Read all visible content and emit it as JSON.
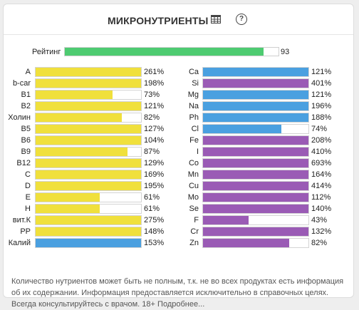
{
  "header": {
    "title": "МИКРОНУТРИЕНТЫ",
    "table_icon": "table-icon",
    "help_icon": "help-icon",
    "help_glyph": "?"
  },
  "rating": {
    "label": "Рейтинг",
    "value": 93,
    "value_text": "93",
    "color": "#4ecb71"
  },
  "colors": {
    "yellow": "#f0e03c",
    "blue": "#4aa0e0",
    "purple": "#9a5bb5"
  },
  "left": [
    {
      "name": "A",
      "pct": "261%",
      "value": 261,
      "color": "yellow"
    },
    {
      "name": "b-car",
      "pct": "198%",
      "value": 198,
      "color": "yellow"
    },
    {
      "name": "B1",
      "pct": "73%",
      "value": 73,
      "color": "yellow"
    },
    {
      "name": "B2",
      "pct": "121%",
      "value": 121,
      "color": "yellow"
    },
    {
      "name": "Холин",
      "pct": "82%",
      "value": 82,
      "color": "yellow"
    },
    {
      "name": "B5",
      "pct": "127%",
      "value": 127,
      "color": "yellow"
    },
    {
      "name": "B6",
      "pct": "104%",
      "value": 104,
      "color": "yellow"
    },
    {
      "name": "B9",
      "pct": "87%",
      "value": 87,
      "color": "yellow"
    },
    {
      "name": "B12",
      "pct": "129%",
      "value": 129,
      "color": "yellow"
    },
    {
      "name": "C",
      "pct": "169%",
      "value": 169,
      "color": "yellow"
    },
    {
      "name": "D",
      "pct": "195%",
      "value": 195,
      "color": "yellow"
    },
    {
      "name": "E",
      "pct": "61%",
      "value": 61,
      "color": "yellow"
    },
    {
      "name": "H",
      "pct": "61%",
      "value": 61,
      "color": "yellow"
    },
    {
      "name": "вит.К",
      "pct": "275%",
      "value": 275,
      "color": "yellow"
    },
    {
      "name": "PP",
      "pct": "148%",
      "value": 148,
      "color": "yellow"
    },
    {
      "name": "Калий",
      "pct": "153%",
      "value": 153,
      "color": "blue"
    }
  ],
  "right": [
    {
      "name": "Ca",
      "pct": "121%",
      "value": 121,
      "color": "blue"
    },
    {
      "name": "Si",
      "pct": "401%",
      "value": 401,
      "color": "purple"
    },
    {
      "name": "Mg",
      "pct": "121%",
      "value": 121,
      "color": "blue"
    },
    {
      "name": "Na",
      "pct": "196%",
      "value": 196,
      "color": "blue"
    },
    {
      "name": "Ph",
      "pct": "188%",
      "value": 188,
      "color": "blue"
    },
    {
      "name": "Cl",
      "pct": "74%",
      "value": 74,
      "color": "blue"
    },
    {
      "name": "Fe",
      "pct": "208%",
      "value": 208,
      "color": "purple"
    },
    {
      "name": "I",
      "pct": "410%",
      "value": 410,
      "color": "purple"
    },
    {
      "name": "Co",
      "pct": "693%",
      "value": 693,
      "color": "purple"
    },
    {
      "name": "Mn",
      "pct": "164%",
      "value": 164,
      "color": "purple"
    },
    {
      "name": "Cu",
      "pct": "414%",
      "value": 414,
      "color": "purple"
    },
    {
      "name": "Mo",
      "pct": "112%",
      "value": 112,
      "color": "purple"
    },
    {
      "name": "Se",
      "pct": "140%",
      "value": 140,
      "color": "purple"
    },
    {
      "name": "F",
      "pct": "43%",
      "value": 43,
      "color": "purple"
    },
    {
      "name": "Cr",
      "pct": "132%",
      "value": 132,
      "color": "purple"
    },
    {
      "name": "Zn",
      "pct": "82%",
      "value": 82,
      "color": "purple"
    }
  ],
  "footnote": {
    "text": "Количество нутриентов может быть не полным, т.к. не во всех продуктах есть информация об их содержании. Информация предоставляется исключительно в справочных целях. Всегда консультируйтесь с врачом. 18+",
    "link": "Подробнее..."
  }
}
